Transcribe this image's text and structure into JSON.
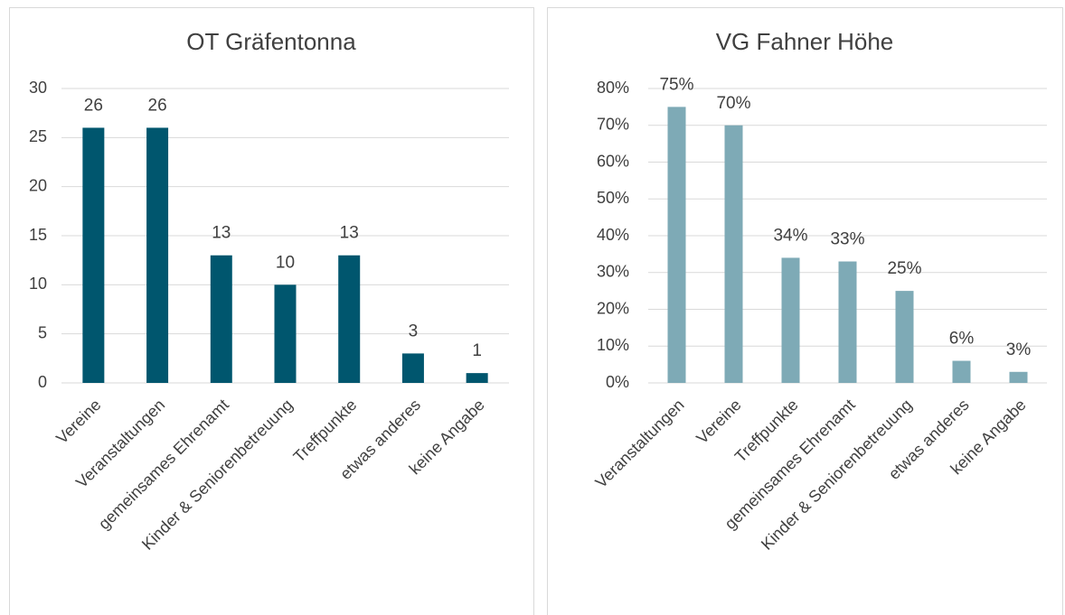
{
  "chart_data": [
    {
      "type": "bar",
      "title": "OT Gräfentonna",
      "categories": [
        "Vereine",
        "Veranstaltungen",
        "gemeinsames Ehrenamt",
        "Kinder & Seniorenbetreuung",
        "Treffpunkte",
        "etwas anderes",
        "keine Angabe"
      ],
      "values": [
        26,
        26,
        13,
        10,
        13,
        3,
        1
      ],
      "color": "#00566e",
      "ylim": [
        0,
        30
      ],
      "yticks": [
        0,
        5,
        10,
        15,
        20,
        25,
        30
      ],
      "grid": true
    },
    {
      "type": "bar",
      "title": "VG Fahner Höhe",
      "categories": [
        "Veranstaltungen",
        "Vereine",
        "Treffpunkte",
        "gemeinsames Ehrenamt",
        "Kinder & Seniorenbetreuung",
        "etwas anderes",
        "keine Angabe"
      ],
      "values": [
        75,
        70,
        34,
        33,
        25,
        6,
        3
      ],
      "value_labels": [
        "75%",
        "70%",
        "34%",
        "33%",
        "25%",
        "6%",
        "3%"
      ],
      "color": "#7eaab6",
      "ylim": [
        0,
        80
      ],
      "yticks": [
        {
          "value": 0,
          "label": "0%"
        },
        {
          "value": 10,
          "label": "10%"
        },
        {
          "value": 20,
          "label": "20%"
        },
        {
          "value": 30,
          "label": "30%"
        },
        {
          "value": 40,
          "label": "40%"
        },
        {
          "value": 50,
          "label": "50%"
        },
        {
          "value": 60,
          "label": "60%"
        },
        {
          "value": 70,
          "label": "70%"
        },
        {
          "value": 80,
          "label": "80%"
        }
      ],
      "grid": true
    }
  ]
}
